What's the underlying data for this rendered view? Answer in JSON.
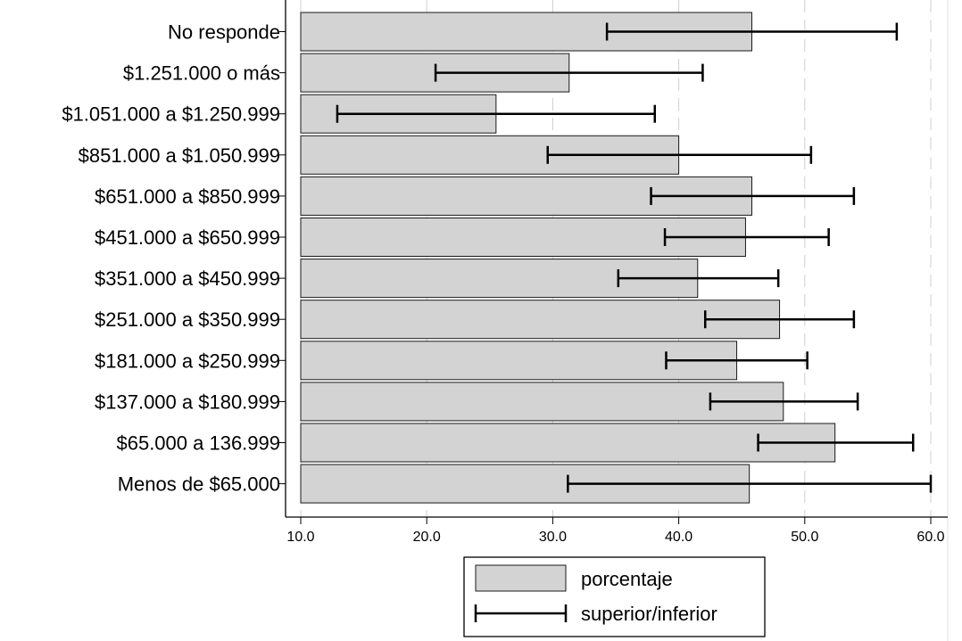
{
  "chart_data": {
    "type": "bar",
    "orientation": "horizontal",
    "categories": [
      "No responde",
      "$1.251.000 o más",
      "$1.051.000 a $1.250.999",
      "$851.000 a $1.050.999",
      "$651.000 a $850.999",
      "$451.000 a $650.999",
      "$351.000 a $450.999",
      "$251.000 a $350.999",
      "$181.000 a $250.999",
      "$137.000 a $180.999",
      "$65.000 a 136.999",
      "Menos de $65.000"
    ],
    "series": [
      {
        "name": "porcentaje",
        "values": [
          45.8,
          31.3,
          25.5,
          40.0,
          45.8,
          45.3,
          41.5,
          48.0,
          44.6,
          48.3,
          52.4,
          45.6
        ]
      }
    ],
    "error_bars": {
      "name": "superior/inferior",
      "lower": [
        34.3,
        20.7,
        12.9,
        29.6,
        37.8,
        38.9,
        35.2,
        42.1,
        39.0,
        42.5,
        46.3,
        31.2
      ],
      "upper": [
        57.3,
        41.9,
        38.1,
        50.5,
        53.9,
        51.9,
        47.9,
        53.9,
        50.2,
        54.2,
        58.6,
        60.0
      ]
    },
    "xlim": [
      10.0,
      60.0
    ],
    "xticks": [
      "10.0",
      "20.0",
      "30.0",
      "40.0",
      "50.0",
      "60.0"
    ],
    "xtick_values": [
      10,
      20,
      30,
      40,
      50,
      60
    ],
    "grid": true,
    "legend_position": "bottom",
    "colors": {
      "bar_fill": "#d3d3d3",
      "bar_stroke": "#1a1a1a",
      "error_bar": "#000000",
      "grid": "#d0d0d0"
    }
  }
}
